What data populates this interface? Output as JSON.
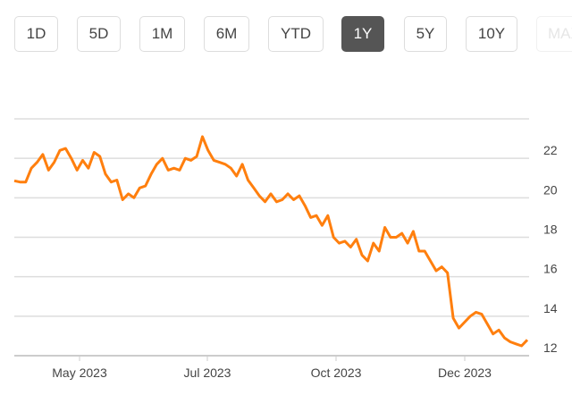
{
  "range_buttons": [
    {
      "label": "1D",
      "active": false
    },
    {
      "label": "5D",
      "active": false
    },
    {
      "label": "1M",
      "active": false
    },
    {
      "label": "6M",
      "active": false
    },
    {
      "label": "YTD",
      "active": false
    },
    {
      "label": "1Y",
      "active": true
    },
    {
      "label": "5Y",
      "active": false
    },
    {
      "label": "10Y",
      "active": false
    },
    {
      "label": "MAX",
      "active": false,
      "disabled": true
    }
  ],
  "chart_data": {
    "type": "line",
    "line_color": "#ff7f0e",
    "grid": true,
    "y_axis_side": "right",
    "ylim": [
      12,
      24
    ],
    "y_ticks": [
      "12",
      "14",
      "16",
      "18",
      "20",
      "22"
    ],
    "x_ticks": [
      "May 2023",
      "Jul 2023",
      "Oct 2023",
      "Dec 2023"
    ],
    "values": [
      20.86,
      20.8,
      20.8,
      21.5,
      21.8,
      22.2,
      21.4,
      21.8,
      22.4,
      22.5,
      22.0,
      21.4,
      21.9,
      21.5,
      22.3,
      22.1,
      21.2,
      20.8,
      20.9,
      19.9,
      20.2,
      20.0,
      20.5,
      20.6,
      21.2,
      21.7,
      22.0,
      21.4,
      21.5,
      21.4,
      22.0,
      21.9,
      22.1,
      23.1,
      22.4,
      21.9,
      21.8,
      21.7,
      21.5,
      21.1,
      21.7,
      20.9,
      20.5,
      20.1,
      19.8,
      20.2,
      19.8,
      19.9,
      20.2,
      19.9,
      20.1,
      19.6,
      19.0,
      19.1,
      18.6,
      19.1,
      18.0,
      17.7,
      17.8,
      17.5,
      17.9,
      17.1,
      16.8,
      17.7,
      17.3,
      18.5,
      18.0,
      18.0,
      18.2,
      17.7,
      18.3,
      17.3,
      17.3,
      16.8,
      16.3,
      16.5,
      16.2,
      13.9,
      13.4,
      13.7,
      14.0,
      14.2,
      14.1,
      13.6,
      13.1,
      13.3,
      12.9,
      12.7,
      12.6,
      12.5,
      12.8
    ]
  }
}
